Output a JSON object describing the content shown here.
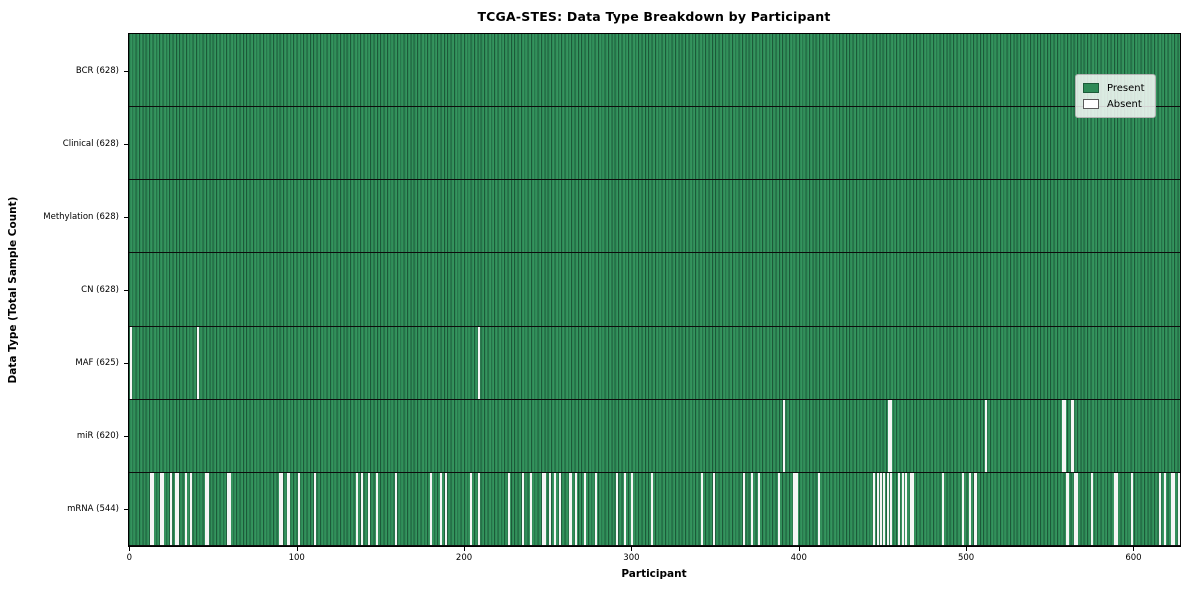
{
  "chart_data": {
    "type": "heatmap",
    "title": "TCGA-STES: Data Type Breakdown by Participant",
    "xlabel": "Participant",
    "ylabel": "Data Type (Total Sample Count)",
    "n_participants": 628,
    "x_ticks": [
      0,
      100,
      200,
      300,
      400,
      500,
      600
    ],
    "x_tick_labels": [
      "0",
      "100",
      "200",
      "300",
      "400",
      "500",
      "600"
    ],
    "grid": false,
    "legend": {
      "position": "upper right",
      "entries": [
        {
          "label": "Present",
          "color": "#2e8b57"
        },
        {
          "label": "Absent",
          "color": "#ffffff"
        }
      ]
    },
    "colors": {
      "present_fill": "#2e8b57",
      "present_edge": "#1c5a39",
      "absent_fill": "#f6f6f6",
      "row_divider": "#0d0d0d",
      "axis": "#000000"
    },
    "rows": [
      {
        "data_type": "BCR",
        "label": "BCR (628)",
        "present_count": 628,
        "absent_count": 0,
        "absent_participants": []
      },
      {
        "data_type": "Clinical",
        "label": "Clinical (628)",
        "present_count": 628,
        "absent_count": 0,
        "absent_participants": []
      },
      {
        "data_type": "Methylation",
        "label": "Methylation (628)",
        "present_count": 628,
        "absent_count": 0,
        "absent_participants": []
      },
      {
        "data_type": "CN",
        "label": "CN (628)",
        "present_count": 628,
        "absent_count": 0,
        "absent_participants": []
      },
      {
        "data_type": "MAF",
        "label": "MAF (625)",
        "present_count": 625,
        "absent_count": 3,
        "absent_participants": [
          1,
          41,
          209
        ]
      },
      {
        "data_type": "miR",
        "label": "miR (620)",
        "present_count": 620,
        "absent_count": 8,
        "absent_participants": [
          391,
          454,
          455,
          512,
          558,
          559,
          563,
          564
        ]
      },
      {
        "data_type": "mRNA",
        "label": "mRNA (544)",
        "present_count": 544,
        "absent_count": 84,
        "absent_participants": [
          13,
          14,
          19,
          20,
          25,
          28,
          29,
          34,
          37,
          46,
          47,
          59,
          60,
          90,
          91,
          95,
          101,
          111,
          136,
          139,
          143,
          148,
          159,
          180,
          186,
          189,
          204,
          209,
          227,
          235,
          240,
          247,
          248,
          251,
          254,
          257,
          263,
          264,
          267,
          272,
          279,
          291,
          296,
          300,
          312,
          342,
          349,
          367,
          372,
          376,
          388,
          397,
          398,
          399,
          412,
          445,
          447,
          449,
          451,
          453,
          455,
          460,
          462,
          464,
          467,
          468,
          486,
          498,
          502,
          505,
          506,
          560,
          561,
          565,
          566,
          575,
          589,
          590,
          599,
          616,
          619,
          623,
          624,
          627
        ]
      }
    ]
  }
}
